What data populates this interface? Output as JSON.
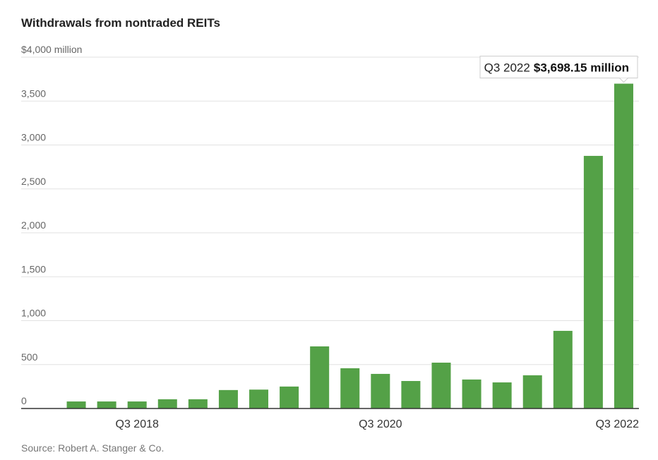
{
  "chart_data": {
    "type": "bar",
    "title": "Withdrawals from nontraded REITs",
    "categories": [
      null,
      null,
      "Q3 2018",
      null,
      null,
      null,
      null,
      null,
      null,
      null,
      "Q3 2020",
      null,
      null,
      null,
      null,
      null,
      null,
      null,
      "Q3 2022"
    ],
    "values": [
      80,
      80,
      80,
      105,
      105,
      210,
      215,
      250,
      707,
      458,
      394,
      313,
      522,
      330,
      297,
      378,
      884,
      2876,
      3698.15
    ],
    "color": "#54a147",
    "ylim": [
      0,
      4000
    ],
    "yticks": [
      0,
      500,
      {
        "value": 1000,
        "label": "1,000"
      },
      {
        "value": 1500,
        "label": "1,500"
      },
      {
        "value": 2000,
        "label": "2,000"
      },
      {
        "value": 2500,
        "label": "2,500"
      },
      {
        "value": 3000,
        "label": "3,000"
      },
      {
        "value": 3500,
        "label": "3,500"
      },
      {
        "value": 4000,
        "label": "$4,000 million"
      }
    ],
    "grid": true,
    "annotation": {
      "category": "Q3 2022",
      "text": "$3,698.15 million"
    },
    "source": "Source: Robert A. Stanger & Co."
  }
}
